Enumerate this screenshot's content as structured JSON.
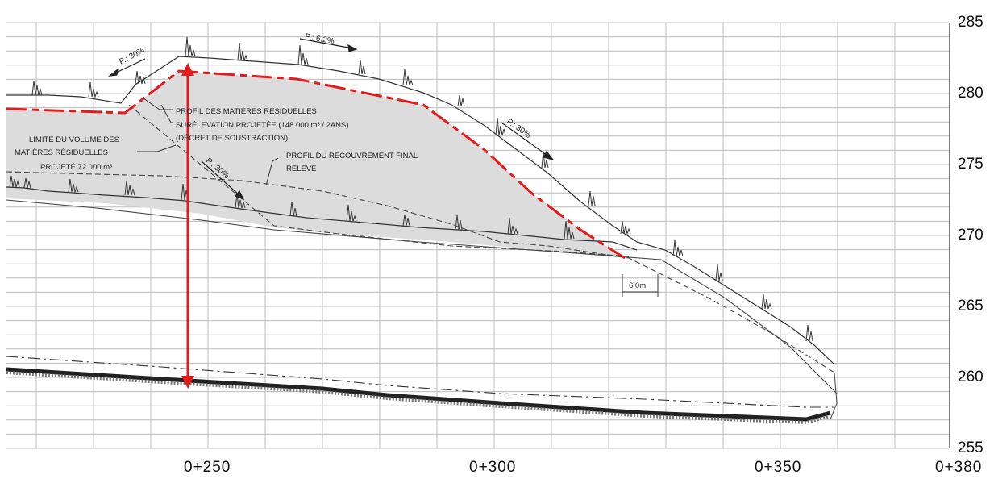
{
  "y_axis": {
    "unit": "m",
    "ticks": [
      "285",
      "280",
      "275",
      "270",
      "265",
      "260",
      "255"
    ],
    "min": 255,
    "max": 285
  },
  "x_axis": {
    "ticks": [
      "0+250",
      "0+300",
      "0+350",
      "0+380"
    ]
  },
  "annotations": {
    "profil_matieres": "PROFIL DES MATIÈRES RÉSIDUELLES",
    "surelevation": "SURÉLEVATION PROJETÉE (148 000 m³ / 2ANS)",
    "decret": "(DÉCRET DE SOUSTRACTION)",
    "limite_1": "LIMITE DU VOLUME DES",
    "limite_2": "MATIÈRES RÉSIDUELLES",
    "limite_3": "PROJETÉ 72 000 m³",
    "recouvrement_1": "PROFIL DU RECOUVREMENT FINAL",
    "recouvrement_2": "RELEVÉ",
    "distance": "6.0m"
  },
  "slopes": [
    "P.: 30%",
    "P.: 6.2%",
    "P.: 30%",
    "P.: 30%"
  ],
  "colors": {
    "accent": "#e41b1b",
    "fill": "#dcdcdc",
    "grid": "#b5b5b5",
    "line": "#222222"
  },
  "measure": {
    "label": "height arrow",
    "color": "#e41b1b"
  }
}
